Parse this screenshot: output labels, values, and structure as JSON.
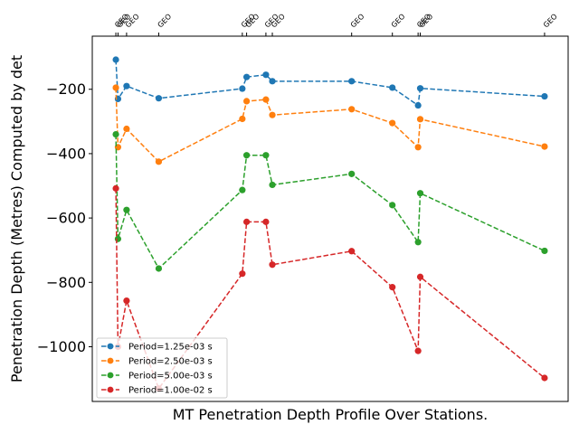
{
  "chart_data": {
    "type": "line",
    "xlabel": "MT Penetration Depth Profile Over Stations.",
    "ylabel": "Penetration Depth (Metres) Computed by det",
    "ylim": [
      -1170,
      -35
    ],
    "xlim": [
      -0.55,
      10.55
    ],
    "yticks": [
      -200,
      -400,
      -600,
      -800,
      -1000
    ],
    "ytick_labels": [
      "−200",
      "−400",
      "−600",
      "−800",
      "−1000"
    ],
    "grid": false,
    "legend_position": "lower-left",
    "top_axis": {
      "positions": [
        0,
        0.05,
        0.25,
        1.0,
        2.95,
        3.05,
        3.5,
        3.65,
        5.5,
        6.45,
        7.05,
        7.1,
        10.0
      ],
      "labels": [
        "GEO",
        "GEO",
        "GEO",
        "GEO",
        "GEO",
        "GEO",
        "GEO",
        "GEO",
        "GEO",
        "GEO",
        "GEO",
        "GEO",
        "GEO"
      ]
    },
    "series": [
      {
        "name": "Period=1.25e-03 s",
        "color": "#1f77b4",
        "x": [
          0,
          0.05,
          0.25,
          1.0,
          2.95,
          3.05,
          3.5,
          3.65,
          5.5,
          6.45,
          7.05,
          7.1,
          10.0
        ],
        "values": [
          -108,
          -230,
          -190,
          -228,
          -198,
          -162,
          -155,
          -175,
          -175,
          -195,
          -250,
          -197,
          -222
        ]
      },
      {
        "name": "Period=2.50e-03 s",
        "color": "#ff7f0e",
        "x": [
          0,
          0.05,
          0.25,
          1.0,
          2.95,
          3.05,
          3.5,
          3.65,
          5.5,
          6.45,
          7.05,
          7.1,
          10.0
        ],
        "values": [
          -195,
          -380,
          -323,
          -425,
          -292,
          -237,
          -232,
          -280,
          -262,
          -305,
          -380,
          -293,
          -378
        ]
      },
      {
        "name": "Period=5.00e-03 s",
        "color": "#2ca02c",
        "x": [
          0,
          0.05,
          0.25,
          1.0,
          2.95,
          3.05,
          3.5,
          3.65,
          5.5,
          6.45,
          7.05,
          7.1,
          10.0
        ],
        "values": [
          -340,
          -665,
          -575,
          -757,
          -513,
          -405,
          -405,
          -497,
          -463,
          -560,
          -675,
          -523,
          -702
        ]
      },
      {
        "name": "Period=1.00e-02 s",
        "color": "#d62728",
        "x": [
          0,
          0.05,
          0.25,
          1.0,
          2.95,
          3.05,
          3.5,
          3.65,
          5.5,
          6.45,
          7.05,
          7.1,
          10.0
        ],
        "values": [
          -508,
          -1000,
          -857,
          -1130,
          -773,
          -612,
          -612,
          -745,
          -703,
          -815,
          -1013,
          -783,
          -1097
        ]
      }
    ]
  }
}
